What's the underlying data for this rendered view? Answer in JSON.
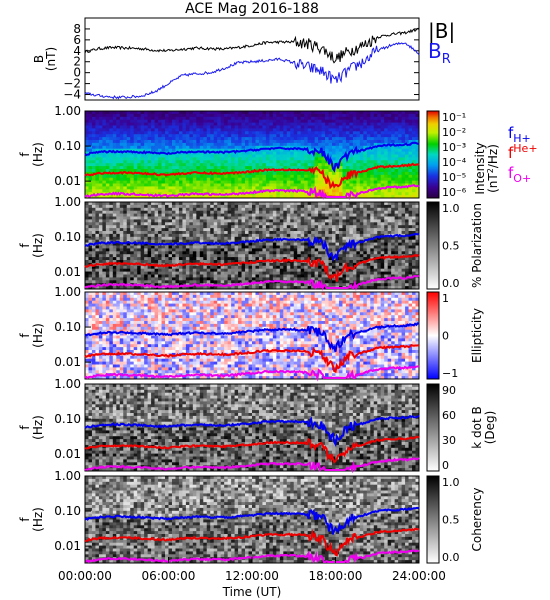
{
  "title": "ACE Mag 2016-188",
  "xlabel": "Time (UT)",
  "x_ticks": [
    "00:00:00",
    "06:00:00",
    "12:00:00",
    "18:00:00",
    "24:00:00"
  ],
  "freq_ticks": [
    "1.00",
    "0.10",
    "0.01"
  ],
  "colors": {
    "B_total": "#000000",
    "B_R": "#1a1aee",
    "f_H": "#0000ee",
    "f_He": "#ee0000",
    "f_O": "#ee00ee"
  },
  "chart_data": [
    {
      "type": "line",
      "panel": "magnetic field",
      "ylabel": "B (nT)",
      "ylabel_top": "B",
      "ylabel_unit": "(nT)",
      "y_ticks": [
        "8",
        "6",
        "4",
        "2",
        "0",
        "−2",
        "−4"
      ],
      "ylim": [
        -5,
        10
      ],
      "x_hours": [
        0,
        1,
        2,
        3,
        4,
        5,
        6,
        7,
        8,
        9,
        10,
        11,
        12,
        13,
        14,
        15,
        16,
        17,
        18,
        19,
        20,
        21,
        22,
        23,
        24
      ],
      "series": [
        {
          "name": "|B|",
          "legend_text": "|B|",
          "values": [
            3.8,
            4.4,
            4.6,
            4.5,
            4.4,
            4.1,
            4.0,
            4.3,
            4.5,
            4.4,
            4.3,
            4.6,
            5.0,
            5.5,
            5.6,
            5.6,
            5.3,
            4.5,
            2.5,
            4.0,
            5.0,
            6.5,
            7.0,
            7.3,
            8.0
          ]
        },
        {
          "name": "B_R",
          "legend_text": "B",
          "legend_sub": "R",
          "values": [
            -3.8,
            -4.2,
            -4.5,
            -4.5,
            -4.3,
            -3.5,
            -2.0,
            -0.5,
            -0.2,
            0.0,
            0.8,
            1.8,
            2.0,
            2.2,
            2.5,
            1.8,
            1.0,
            0.3,
            -1.5,
            0.5,
            2.0,
            4.0,
            5.0,
            5.5,
            3.5
          ]
        }
      ]
    },
    {
      "type": "heatmap",
      "panel": "power spectral density",
      "ylabel": "f (Hz)",
      "cbar_label": "Intensity (nT²/Hz)",
      "cbar_label_parts": [
        "Intensity",
        "(nT",
        "2",
        "/Hz)"
      ],
      "cbar_ticks": [
        "10⁻¹",
        "10⁻²",
        "10⁻³",
        "10⁻⁴",
        "10⁻⁵",
        "10⁻⁶"
      ],
      "legend": [
        {
          "label": "f",
          "sub": "H+"
        },
        {
          "label": "f",
          "sub": "He+"
        },
        {
          "label": "f",
          "sub": "O+"
        }
      ]
    },
    {
      "type": "heatmap",
      "panel": "polarization",
      "ylabel": "f (Hz)",
      "cbar_label": "% Polarization",
      "cbar_ticks": [
        "1.0",
        "0.5",
        "0.0"
      ],
      "cbar_range": [
        0,
        1
      ]
    },
    {
      "type": "heatmap",
      "panel": "ellipticity",
      "ylabel": "f (Hz)",
      "cbar_label": "Ellipticity",
      "cbar_ticks": [
        "1",
        "0",
        "−1"
      ],
      "cbar_range": [
        -1,
        1
      ]
    },
    {
      "type": "heatmap",
      "panel": "wave normal angle",
      "ylabel": "f (Hz)",
      "cbar_label": "k dot B (Deg)",
      "cbar_label_parts": [
        "k dot B",
        "(Deg)"
      ],
      "cbar_ticks": [
        "90",
        "60",
        "30",
        "0"
      ],
      "cbar_range": [
        0,
        90
      ]
    },
    {
      "type": "heatmap",
      "panel": "coherency",
      "ylabel": "f (Hz)",
      "cbar_label": "Coherency",
      "cbar_ticks": [
        "1.0",
        "0.5",
        "0.0"
      ],
      "cbar_range": [
        0,
        1
      ]
    }
  ],
  "gyrofrequency_hz": {
    "x_hours": [
      0,
      1,
      2,
      3,
      4,
      5,
      6,
      7,
      8,
      9,
      10,
      11,
      12,
      13,
      14,
      15,
      16,
      17,
      17.5,
      18,
      18.5,
      19,
      20,
      21,
      22,
      23,
      24
    ],
    "H+": [
      0.058,
      0.067,
      0.07,
      0.069,
      0.067,
      0.063,
      0.061,
      0.066,
      0.069,
      0.067,
      0.066,
      0.07,
      0.076,
      0.084,
      0.085,
      0.085,
      0.081,
      0.069,
      0.035,
      0.025,
      0.04,
      0.061,
      0.076,
      0.099,
      0.107,
      0.111,
      0.122
    ],
    "He+": [
      0.0145,
      0.0168,
      0.0175,
      0.0172,
      0.0168,
      0.0157,
      0.0153,
      0.0165,
      0.0172,
      0.0168,
      0.0165,
      0.0175,
      0.019,
      0.021,
      0.0213,
      0.0213,
      0.0202,
      0.0172,
      0.0088,
      0.0063,
      0.01,
      0.0153,
      0.019,
      0.0248,
      0.0267,
      0.0278,
      0.0305
    ],
    "O+": [
      0.0036,
      0.0042,
      0.0044,
      0.0043,
      0.0042,
      0.0039,
      0.0038,
      0.0041,
      0.0043,
      0.0042,
      0.0041,
      0.0044,
      0.0048,
      0.0053,
      0.0053,
      0.0053,
      0.0051,
      0.0043,
      0.0022,
      0.0016,
      0.0025,
      0.0038,
      0.0048,
      0.0062,
      0.0067,
      0.0069,
      0.0076
    ]
  }
}
